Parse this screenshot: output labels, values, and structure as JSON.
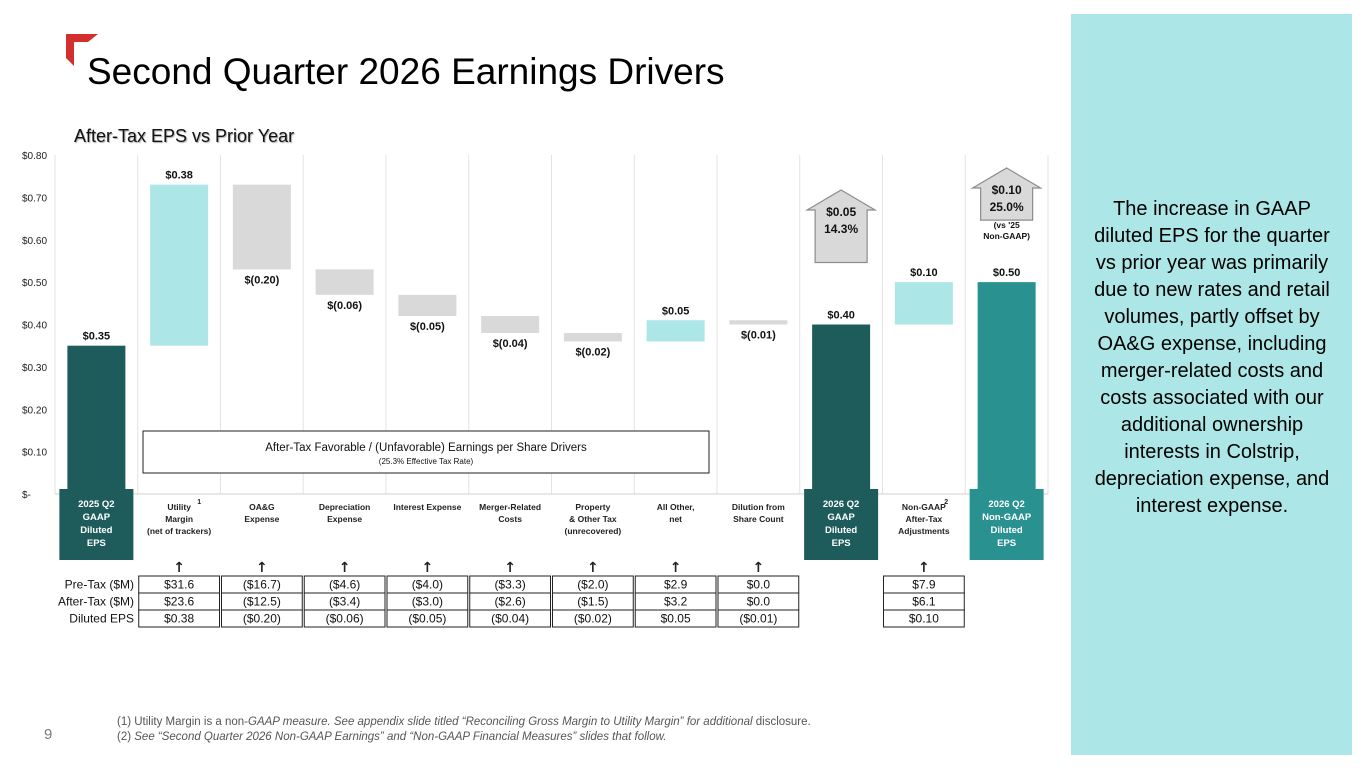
{
  "title": "Second Quarter 2026 Earnings Drivers",
  "subtitle": "After-Tax EPS vs Prior Year",
  "page_number": "9",
  "side_text": "The increase in GAAP diluted EPS for the quarter vs prior year was primarily due to new rates and retail volumes, partly offset by OA&G expense, including merger-related costs and costs associated with our additional ownership interests in Colstrip, depreciation expense, and interest expense.",
  "footnotes": [
    {
      "lead": "(1) Utility Margin is a non-",
      "italic": "GAAP measure. See appendix slide titled “Reconciling Gross Margin to Utility Margin” for additional",
      "tail": " disclosure."
    },
    {
      "lead": "(2) ",
      "italic": "See “Second Quarter 2026 Non-GAAP Earnings” and “Non-GAAP Financial Measures” slides that follow.",
      "tail": ""
    }
  ],
  "colors": {
    "dark_teal": "#1e5c5c",
    "mid_teal": "#2a9191",
    "light_teal": "#ade6e6",
    "gray": "#d9d9d9",
    "accent_red": "#d32f2f"
  },
  "chart_data": {
    "type": "bar",
    "subtype": "waterfall",
    "ylim": [
      0,
      0.8
    ],
    "yticks": [
      {
        "v": 0.8,
        "label": "$0.80"
      },
      {
        "v": 0.7,
        "label": "$0.70"
      },
      {
        "v": 0.6,
        "label": "$0.60"
      },
      {
        "v": 0.5,
        "label": "$0.50"
      },
      {
        "v": 0.4,
        "label": "$0.40"
      },
      {
        "v": 0.3,
        "label": "$0.30"
      },
      {
        "v": 0.2,
        "label": "$0.20"
      },
      {
        "v": 0.1,
        "label": "$0.10"
      },
      {
        "v": 0.0,
        "label": "$-"
      }
    ],
    "bars": [
      {
        "category": [
          "2025 Q2",
          "GAAP",
          "Diluted",
          "EPS"
        ],
        "sup": "",
        "kind": "total",
        "color": "dark_teal",
        "start": 0,
        "end": 0.35,
        "label": "$0.35"
      },
      {
        "category": [
          "Utility",
          "Margin",
          "(net of trackers)"
        ],
        "sup": "1",
        "kind": "fav",
        "color": "light_teal",
        "start": 0.35,
        "end": 0.73,
        "label": "$0.38"
      },
      {
        "category": [
          "OA&G",
          "Expense"
        ],
        "sup": "",
        "kind": "unfav",
        "color": "gray",
        "start": 0.73,
        "end": 0.53,
        "label": "$(0.20)"
      },
      {
        "category": [
          "Depreciation",
          "Expense"
        ],
        "sup": "",
        "kind": "unfav",
        "color": "gray",
        "start": 0.53,
        "end": 0.47,
        "label": "$(0.06)"
      },
      {
        "category": [
          "Interest Expense"
        ],
        "sup": "",
        "kind": "unfav",
        "color": "gray",
        "start": 0.47,
        "end": 0.42,
        "label": "$(0.05)"
      },
      {
        "category": [
          "Merger-Related",
          "Costs"
        ],
        "sup": "",
        "kind": "unfav",
        "color": "gray",
        "start": 0.42,
        "end": 0.38,
        "label": "$(0.04)"
      },
      {
        "category": [
          "Property",
          "& Other Tax",
          "(unrecovered)"
        ],
        "sup": "",
        "kind": "unfav",
        "color": "gray",
        "start": 0.38,
        "end": 0.36,
        "label": "$(0.02)"
      },
      {
        "category": [
          "All Other,",
          "net"
        ],
        "sup": "",
        "kind": "fav",
        "color": "light_teal",
        "start": 0.36,
        "end": 0.41,
        "label": "$0.05"
      },
      {
        "category": [
          "Dilution from",
          "Share Count"
        ],
        "sup": "",
        "kind": "unfav",
        "color": "gray",
        "start": 0.41,
        "end": 0.4,
        "label": "$(0.01)"
      },
      {
        "category": [
          "2026 Q2",
          "GAAP",
          "Diluted",
          "EPS"
        ],
        "sup": "",
        "kind": "total",
        "color": "dark_teal",
        "start": 0,
        "end": 0.4,
        "label": "$0.40"
      },
      {
        "category": [
          "Non-GAAP",
          "After-Tax",
          "Adjustments"
        ],
        "sup": "2",
        "kind": "fav",
        "color": "light_teal",
        "start": 0.4,
        "end": 0.5,
        "label": "$0.10"
      },
      {
        "category": [
          "2026 Q2",
          "Non-GAAP",
          "Diluted",
          "EPS"
        ],
        "sup": "",
        "kind": "total",
        "color": "mid_teal",
        "start": 0,
        "end": 0.5,
        "label": "$0.50"
      }
    ],
    "callouts": [
      {
        "bar": 9,
        "lines": [
          "$0.05",
          "14.3%"
        ]
      },
      {
        "bar": 11,
        "lines": [
          "$0.10",
          "25.0%",
          "(vs '25",
          "Non-GAAP)"
        ]
      }
    ],
    "drivers_box": {
      "title": "After-Tax Favorable / (Unfavorable) Earnings per Share Drivers",
      "note": "(25.3% Effective Tax Rate)"
    },
    "arrow_glyph": "↑",
    "table": {
      "row_labels": [
        "Pre-Tax ($M)",
        "After-Tax ($M)",
        "Diluted EPS"
      ],
      "columns": [
        {
          "bar": 1,
          "values": [
            "$31.6",
            "$23.6",
            "$0.38"
          ]
        },
        {
          "bar": 2,
          "values": [
            "($16.7)",
            "($12.5)",
            "($0.20)"
          ]
        },
        {
          "bar": 3,
          "values": [
            "($4.6)",
            "($3.4)",
            "($0.06)"
          ]
        },
        {
          "bar": 4,
          "values": [
            "($4.0)",
            "($3.0)",
            "($0.05)"
          ]
        },
        {
          "bar": 5,
          "values": [
            "($3.3)",
            "($2.6)",
            "($0.04)"
          ]
        },
        {
          "bar": 6,
          "values": [
            "($2.0)",
            "($1.5)",
            "($0.02)"
          ]
        },
        {
          "bar": 7,
          "values": [
            "$2.9",
            "$3.2",
            "$0.05"
          ]
        },
        {
          "bar": 8,
          "values": [
            "$0.0",
            "$0.0",
            "($0.01)"
          ]
        },
        {
          "bar": 10,
          "values": [
            "$7.9",
            "$6.1",
            "$0.10"
          ]
        }
      ]
    }
  }
}
